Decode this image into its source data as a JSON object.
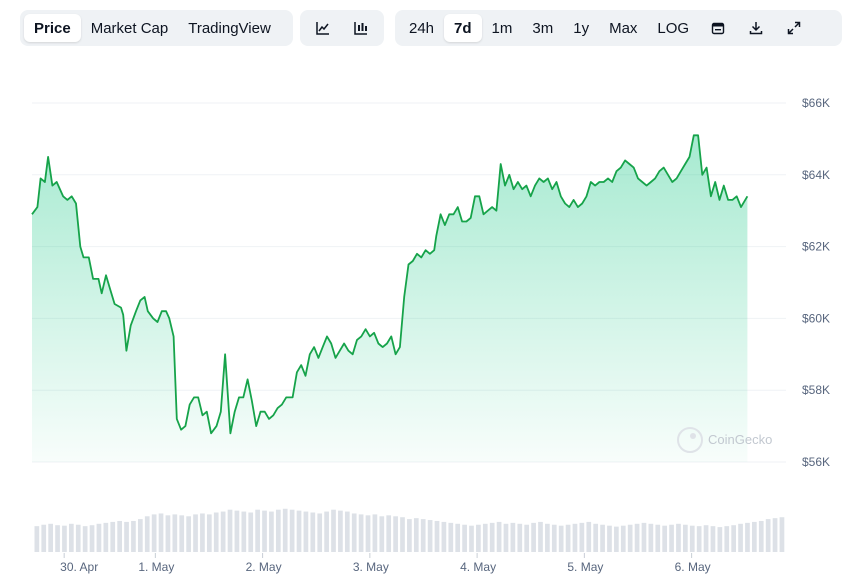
{
  "toolbar": {
    "metric_tabs": [
      {
        "label": "Price",
        "active": true
      },
      {
        "label": "Market Cap",
        "active": false
      },
      {
        "label": "TradingView",
        "active": false
      }
    ],
    "chart_type_icons": [
      "line-chart-icon",
      "candlestick-chart-icon"
    ],
    "range_tabs": [
      {
        "label": "24h",
        "active": false
      },
      {
        "label": "7d",
        "active": true
      },
      {
        "label": "1m",
        "active": false
      },
      {
        "label": "3m",
        "active": false
      },
      {
        "label": "1y",
        "active": false
      },
      {
        "label": "Max",
        "active": false
      },
      {
        "label": "LOG",
        "active": false
      }
    ],
    "tool_icons": [
      "calendar-icon",
      "download-icon",
      "expand-icon"
    ]
  },
  "watermark": {
    "text": "CoinGecko"
  },
  "colors": {
    "line": "#16a34a",
    "fill": "#16c784",
    "volume": "#dde1e7",
    "grid": "#eff2f5"
  },
  "chart_data": {
    "type": "area",
    "title": "",
    "xlabel": "",
    "ylabel": "",
    "ylim": [
      56000,
      66000
    ],
    "grid": true,
    "y_tick_labels": [
      "$66K",
      "$64K",
      "$62K",
      "$60K",
      "$58K",
      "$56K"
    ],
    "y_tick_values": [
      66000,
      64000,
      62000,
      60000,
      58000,
      56000
    ],
    "x_tick_labels": [
      "30. Apr",
      "1. May",
      "2. May",
      "3. May",
      "4. May",
      "5. May",
      "6. May"
    ],
    "x_tick_values": [
      0.15,
      1.0,
      2.0,
      3.0,
      4.0,
      5.0,
      6.0
    ],
    "x_range": [
      -0.15,
      6.88
    ],
    "series": [
      {
        "values": [
          [
            -0.15,
            62900
          ],
          [
            -0.1,
            63100
          ],
          [
            -0.07,
            63900
          ],
          [
            -0.03,
            63800
          ],
          [
            0.0,
            64500
          ],
          [
            0.04,
            63700
          ],
          [
            0.08,
            63800
          ],
          [
            0.14,
            63400
          ],
          [
            0.18,
            63300
          ],
          [
            0.22,
            63400
          ],
          [
            0.26,
            63200
          ],
          [
            0.3,
            62000
          ],
          [
            0.33,
            61700
          ],
          [
            0.38,
            61700
          ],
          [
            0.42,
            61100
          ],
          [
            0.47,
            61100
          ],
          [
            0.5,
            60700
          ],
          [
            0.54,
            61200
          ],
          [
            0.58,
            60800
          ],
          [
            0.62,
            60400
          ],
          [
            0.68,
            60300
          ],
          [
            0.7,
            60100
          ],
          [
            0.73,
            59100
          ],
          [
            0.77,
            59800
          ],
          [
            0.82,
            60200
          ],
          [
            0.86,
            60500
          ],
          [
            0.9,
            60600
          ],
          [
            0.93,
            60200
          ],
          [
            0.98,
            60000
          ],
          [
            1.02,
            59900
          ],
          [
            1.06,
            60200
          ],
          [
            1.1,
            60200
          ],
          [
            1.13,
            60000
          ],
          [
            1.17,
            59500
          ],
          [
            1.2,
            57200
          ],
          [
            1.24,
            56900
          ],
          [
            1.28,
            57000
          ],
          [
            1.32,
            57600
          ],
          [
            1.36,
            57800
          ],
          [
            1.4,
            57800
          ],
          [
            1.44,
            57300
          ],
          [
            1.48,
            57400
          ],
          [
            1.52,
            56800
          ],
          [
            1.57,
            57000
          ],
          [
            1.61,
            57400
          ],
          [
            1.65,
            59000
          ],
          [
            1.7,
            56800
          ],
          [
            1.74,
            57400
          ],
          [
            1.78,
            57800
          ],
          [
            1.82,
            57800
          ],
          [
            1.86,
            58300
          ],
          [
            1.9,
            57700
          ],
          [
            1.94,
            57000
          ],
          [
            1.98,
            57400
          ],
          [
            2.02,
            57400
          ],
          [
            2.06,
            57200
          ],
          [
            2.1,
            57300
          ],
          [
            2.14,
            57500
          ],
          [
            2.18,
            57600
          ],
          [
            2.22,
            57800
          ],
          [
            2.28,
            57800
          ],
          [
            2.32,
            58500
          ],
          [
            2.36,
            58700
          ],
          [
            2.4,
            58400
          ],
          [
            2.44,
            59000
          ],
          [
            2.48,
            59200
          ],
          [
            2.52,
            58900
          ],
          [
            2.56,
            59200
          ],
          [
            2.6,
            59500
          ],
          [
            2.64,
            59300
          ],
          [
            2.68,
            58900
          ],
          [
            2.72,
            59100
          ],
          [
            2.76,
            59300
          ],
          [
            2.8,
            59100
          ],
          [
            2.84,
            59000
          ],
          [
            2.88,
            59400
          ],
          [
            2.92,
            59500
          ],
          [
            2.96,
            59700
          ],
          [
            3.0,
            59500
          ],
          [
            3.04,
            59600
          ],
          [
            3.08,
            59300
          ],
          [
            3.12,
            59200
          ],
          [
            3.16,
            59300
          ],
          [
            3.2,
            59500
          ],
          [
            3.24,
            59000
          ],
          [
            3.28,
            59200
          ],
          [
            3.32,
            60600
          ],
          [
            3.36,
            61500
          ],
          [
            3.4,
            61600
          ],
          [
            3.44,
            61800
          ],
          [
            3.48,
            61700
          ],
          [
            3.52,
            61900
          ],
          [
            3.56,
            61800
          ],
          [
            3.6,
            61900
          ],
          [
            3.62,
            62300
          ],
          [
            3.66,
            62900
          ],
          [
            3.7,
            62600
          ],
          [
            3.74,
            62900
          ],
          [
            3.78,
            62900
          ],
          [
            3.82,
            63100
          ],
          [
            3.86,
            62700
          ],
          [
            3.9,
            62700
          ],
          [
            3.94,
            62800
          ],
          [
            3.98,
            63400
          ],
          [
            4.02,
            63400
          ],
          [
            4.06,
            62900
          ],
          [
            4.1,
            63000
          ],
          [
            4.14,
            63100
          ],
          [
            4.18,
            63000
          ],
          [
            4.22,
            64300
          ],
          [
            4.26,
            63700
          ],
          [
            4.3,
            64000
          ],
          [
            4.34,
            63600
          ],
          [
            4.38,
            63800
          ],
          [
            4.42,
            63600
          ],
          [
            4.46,
            63700
          ],
          [
            4.5,
            63400
          ],
          [
            4.54,
            63700
          ],
          [
            4.58,
            63900
          ],
          [
            4.62,
            63800
          ],
          [
            4.66,
            63900
          ],
          [
            4.7,
            63600
          ],
          [
            4.74,
            63800
          ],
          [
            4.78,
            63400
          ],
          [
            4.82,
            63200
          ],
          [
            4.86,
            63100
          ],
          [
            4.9,
            63300
          ],
          [
            4.94,
            63100
          ],
          [
            4.98,
            63200
          ],
          [
            5.02,
            63400
          ],
          [
            5.06,
            63800
          ],
          [
            5.1,
            63700
          ],
          [
            5.14,
            63800
          ],
          [
            5.18,
            63800
          ],
          [
            5.22,
            63900
          ],
          [
            5.26,
            63800
          ],
          [
            5.3,
            64100
          ],
          [
            5.34,
            64200
          ],
          [
            5.38,
            64400
          ],
          [
            5.42,
            64300
          ],
          [
            5.46,
            64200
          ],
          [
            5.5,
            63900
          ],
          [
            5.54,
            63800
          ],
          [
            5.58,
            63700
          ],
          [
            5.62,
            63800
          ],
          [
            5.66,
            63900
          ],
          [
            5.7,
            64100
          ],
          [
            5.74,
            64200
          ],
          [
            5.78,
            64000
          ],
          [
            5.82,
            63800
          ],
          [
            5.86,
            63900
          ],
          [
            5.9,
            64100
          ],
          [
            5.94,
            64300
          ],
          [
            5.98,
            64500
          ],
          [
            6.02,
            65100
          ],
          [
            6.06,
            65100
          ],
          [
            6.1,
            64000
          ],
          [
            6.14,
            64200
          ],
          [
            6.18,
            63400
          ],
          [
            6.22,
            63800
          ],
          [
            6.26,
            63300
          ],
          [
            6.3,
            63700
          ],
          [
            6.34,
            63300
          ],
          [
            6.38,
            63300
          ],
          [
            6.42,
            63400
          ],
          [
            6.46,
            63100
          ],
          [
            6.52,
            63400
          ]
        ]
      }
    ],
    "volume": {
      "values": [
        0.55,
        0.58,
        0.6,
        0.57,
        0.56,
        0.6,
        0.58,
        0.55,
        0.57,
        0.6,
        0.62,
        0.64,
        0.66,
        0.64,
        0.66,
        0.7,
        0.76,
        0.8,
        0.82,
        0.78,
        0.8,
        0.78,
        0.76,
        0.8,
        0.82,
        0.8,
        0.84,
        0.86,
        0.9,
        0.88,
        0.86,
        0.84,
        0.9,
        0.88,
        0.86,
        0.9,
        0.92,
        0.9,
        0.88,
        0.86,
        0.84,
        0.82,
        0.86,
        0.9,
        0.88,
        0.86,
        0.82,
        0.8,
        0.78,
        0.8,
        0.76,
        0.78,
        0.76,
        0.74,
        0.7,
        0.72,
        0.7,
        0.68,
        0.66,
        0.64,
        0.62,
        0.6,
        0.58,
        0.56,
        0.58,
        0.6,
        0.62,
        0.64,
        0.6,
        0.62,
        0.6,
        0.58,
        0.62,
        0.64,
        0.6,
        0.58,
        0.56,
        0.58,
        0.6,
        0.62,
        0.64,
        0.6,
        0.58,
        0.56,
        0.54,
        0.56,
        0.58,
        0.6,
        0.62,
        0.6,
        0.58,
        0.56,
        0.58,
        0.6,
        0.58,
        0.56,
        0.55,
        0.57,
        0.55,
        0.53,
        0.55,
        0.57,
        0.6,
        0.62,
        0.64,
        0.66,
        0.7,
        0.72,
        0.74
      ]
    }
  }
}
